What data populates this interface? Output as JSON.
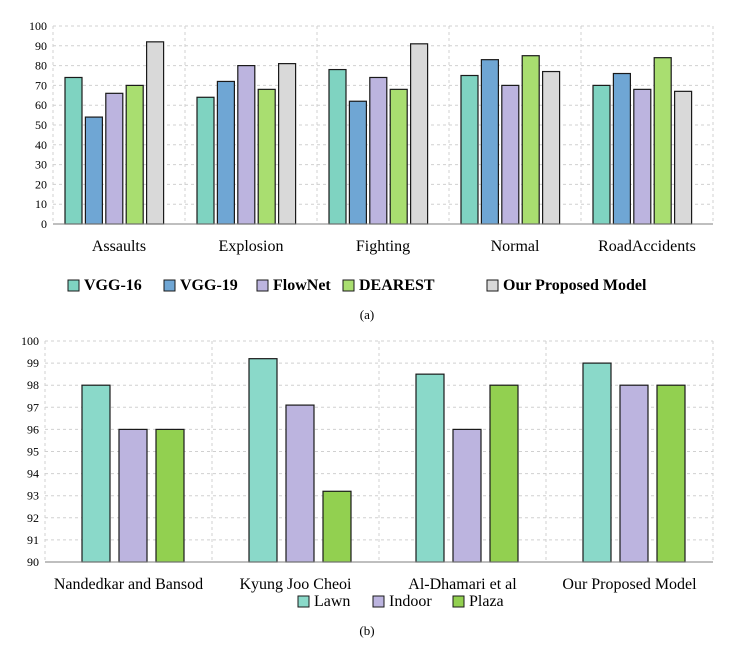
{
  "chart_data": [
    {
      "type": "bar",
      "caption": "(a)",
      "categories": [
        "Assaults",
        "Explosion",
        "Fighting",
        "Normal",
        "RoadAccidents"
      ],
      "series": [
        {
          "name": "VGG-16",
          "color": "#7fd3c1",
          "values": [
            74,
            64,
            78,
            75,
            70
          ]
        },
        {
          "name": "VGG-19",
          "color": "#6fa6d4",
          "values": [
            54,
            72,
            62,
            83,
            76
          ]
        },
        {
          "name": "FlowNet",
          "color": "#bcb4df",
          "values": [
            66,
            80,
            74,
            70,
            68
          ]
        },
        {
          "name": "DEAREST",
          "color": "#a9de70",
          "values": [
            70,
            68,
            68,
            85,
            84
          ]
        },
        {
          "name": "Our Proposed Model",
          "color": "#d9d9d9",
          "values": [
            92,
            81,
            91,
            77,
            67
          ]
        }
      ],
      "ylim": [
        0,
        100
      ],
      "yticks": [
        0,
        10,
        20,
        30,
        40,
        50,
        60,
        70,
        80,
        90,
        100
      ],
      "grid": true,
      "legend": "bottom"
    },
    {
      "type": "bar",
      "caption": "(b)",
      "categories": [
        "Nandedkar and Bansod",
        "Kyung Joo Cheoi",
        "Al-Dhamari et al",
        "Our Proposed Model"
      ],
      "series": [
        {
          "name": "Lawn",
          "color": "#8ad9c9",
          "values": [
            98,
            99.2,
            98.5,
            99
          ]
        },
        {
          "name": "Indoor",
          "color": "#bcb4df",
          "values": [
            96,
            97.1,
            96,
            98
          ]
        },
        {
          "name": "Plaza",
          "color": "#92d050",
          "values": [
            96,
            93.2,
            98,
            98
          ]
        }
      ],
      "ylim": [
        90,
        100
      ],
      "yticks": [
        90,
        91,
        92,
        93,
        94,
        95,
        96,
        97,
        98,
        99,
        100
      ],
      "grid": true,
      "legend": "bottom"
    }
  ]
}
